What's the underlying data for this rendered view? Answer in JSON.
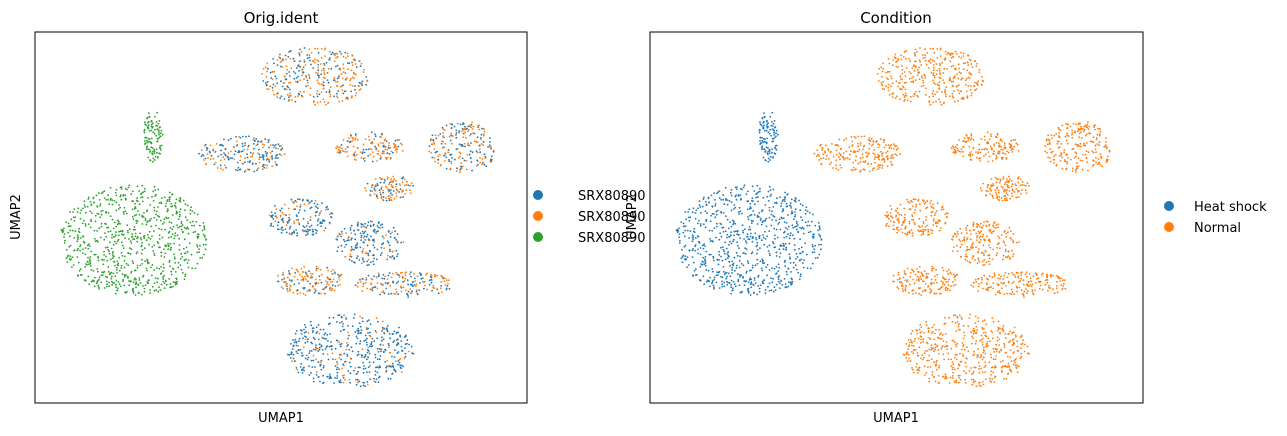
{
  "colors": {
    "blue": "#1f77b4",
    "orange": "#ff7f0e",
    "green": "#2ca02c",
    "axes": "#000000",
    "background": "#ffffff"
  },
  "chart_data": [
    {
      "type": "scatter",
      "title": "Orig.ident",
      "xlabel": "UMAP1",
      "ylabel": "UMAP2",
      "xlim": [
        0,
        100
      ],
      "ylim": [
        0,
        100
      ],
      "ticks": "none",
      "grid": false,
      "legend_position": "right outside",
      "legend": [
        {
          "label": "SRX80890",
          "color": "#1f77b4"
        },
        {
          "label": "SRX80890",
          "color": "#ff7f0e"
        },
        {
          "label": "SRX80890",
          "color": "#2ca02c"
        }
      ],
      "clusters": [
        {
          "name": "top-center",
          "cx": 57,
          "cy": 88,
          "rx": 11,
          "ry": 8,
          "mix": [
            0.4,
            0.6,
            0
          ]
        },
        {
          "name": "mid-left",
          "cx": 42,
          "cy": 67,
          "rx": 9,
          "ry": 5,
          "mix": [
            0.6,
            0.4,
            0
          ]
        },
        {
          "name": "mid-center",
          "cx": 68,
          "cy": 69,
          "rx": 7,
          "ry": 4,
          "mix": [
            0.3,
            0.7,
            0
          ]
        },
        {
          "name": "right-top",
          "cx": 87,
          "cy": 69,
          "rx": 7,
          "ry": 7,
          "mix": [
            0.5,
            0.5,
            0
          ]
        },
        {
          "name": "right-mid",
          "cx": 72,
          "cy": 58,
          "rx": 5,
          "ry": 3.5,
          "mix": [
            0.4,
            0.6,
            0
          ]
        },
        {
          "name": "center",
          "cx": 54,
          "cy": 50,
          "rx": 7,
          "ry": 5,
          "mix": [
            0.7,
            0.3,
            0
          ]
        },
        {
          "name": "center-right",
          "cx": 68,
          "cy": 43,
          "rx": 7,
          "ry": 6,
          "mix": [
            0.75,
            0.25,
            0
          ]
        },
        {
          "name": "lower-right",
          "cx": 75,
          "cy": 32,
          "rx": 10,
          "ry": 3.5,
          "mix": [
            0.5,
            0.5,
            0
          ]
        },
        {
          "name": "lower-mid",
          "cx": 56,
          "cy": 33,
          "rx": 7,
          "ry": 4,
          "mix": [
            0.3,
            0.7,
            0
          ]
        },
        {
          "name": "bottom",
          "cx": 64,
          "cy": 14,
          "rx": 13,
          "ry": 10,
          "mix": [
            0.85,
            0.15,
            0
          ]
        },
        {
          "name": "left-group",
          "cx": 20,
          "cy": 44,
          "rx": 15,
          "ry": 15,
          "mix": [
            0,
            0,
            1
          ]
        },
        {
          "name": "left-top-tail",
          "cx": 24,
          "cy": 72,
          "rx": 2,
          "ry": 7,
          "mix": [
            0,
            0,
            1
          ]
        }
      ]
    },
    {
      "type": "scatter",
      "title": "Condition",
      "xlabel": "UMAP1",
      "ylabel": "UMAP2",
      "xlim": [
        0,
        100
      ],
      "ylim": [
        0,
        100
      ],
      "ticks": "none",
      "grid": false,
      "legend_position": "right outside",
      "legend": [
        {
          "label": "Heat shock",
          "color": "#1f77b4"
        },
        {
          "label": "Normal",
          "color": "#ff7f0e"
        }
      ],
      "clusters": [
        {
          "name": "top-center",
          "cx": 57,
          "cy": 88,
          "rx": 11,
          "ry": 8,
          "mix": [
            0,
            1
          ]
        },
        {
          "name": "mid-left",
          "cx": 42,
          "cy": 67,
          "rx": 9,
          "ry": 5,
          "mix": [
            0,
            1
          ]
        },
        {
          "name": "mid-center",
          "cx": 68,
          "cy": 69,
          "rx": 7,
          "ry": 4,
          "mix": [
            0,
            1
          ]
        },
        {
          "name": "right-top",
          "cx": 87,
          "cy": 69,
          "rx": 7,
          "ry": 7,
          "mix": [
            0,
            1
          ]
        },
        {
          "name": "right-mid",
          "cx": 72,
          "cy": 58,
          "rx": 5,
          "ry": 3.5,
          "mix": [
            0,
            1
          ]
        },
        {
          "name": "center",
          "cx": 54,
          "cy": 50,
          "rx": 7,
          "ry": 5,
          "mix": [
            0,
            1
          ]
        },
        {
          "name": "center-right",
          "cx": 68,
          "cy": 43,
          "rx": 7,
          "ry": 6,
          "mix": [
            0,
            1
          ]
        },
        {
          "name": "lower-right",
          "cx": 75,
          "cy": 32,
          "rx": 10,
          "ry": 3.5,
          "mix": [
            0,
            1
          ]
        },
        {
          "name": "lower-mid",
          "cx": 56,
          "cy": 33,
          "rx": 7,
          "ry": 4,
          "mix": [
            0,
            1
          ]
        },
        {
          "name": "bottom",
          "cx": 64,
          "cy": 14,
          "rx": 13,
          "ry": 10,
          "mix": [
            0,
            1
          ]
        },
        {
          "name": "left-group",
          "cx": 20,
          "cy": 44,
          "rx": 15,
          "ry": 15,
          "mix": [
            1,
            0
          ]
        },
        {
          "name": "left-top-tail",
          "cx": 24,
          "cy": 72,
          "rx": 2,
          "ry": 7,
          "mix": [
            1,
            0
          ]
        }
      ]
    }
  ]
}
